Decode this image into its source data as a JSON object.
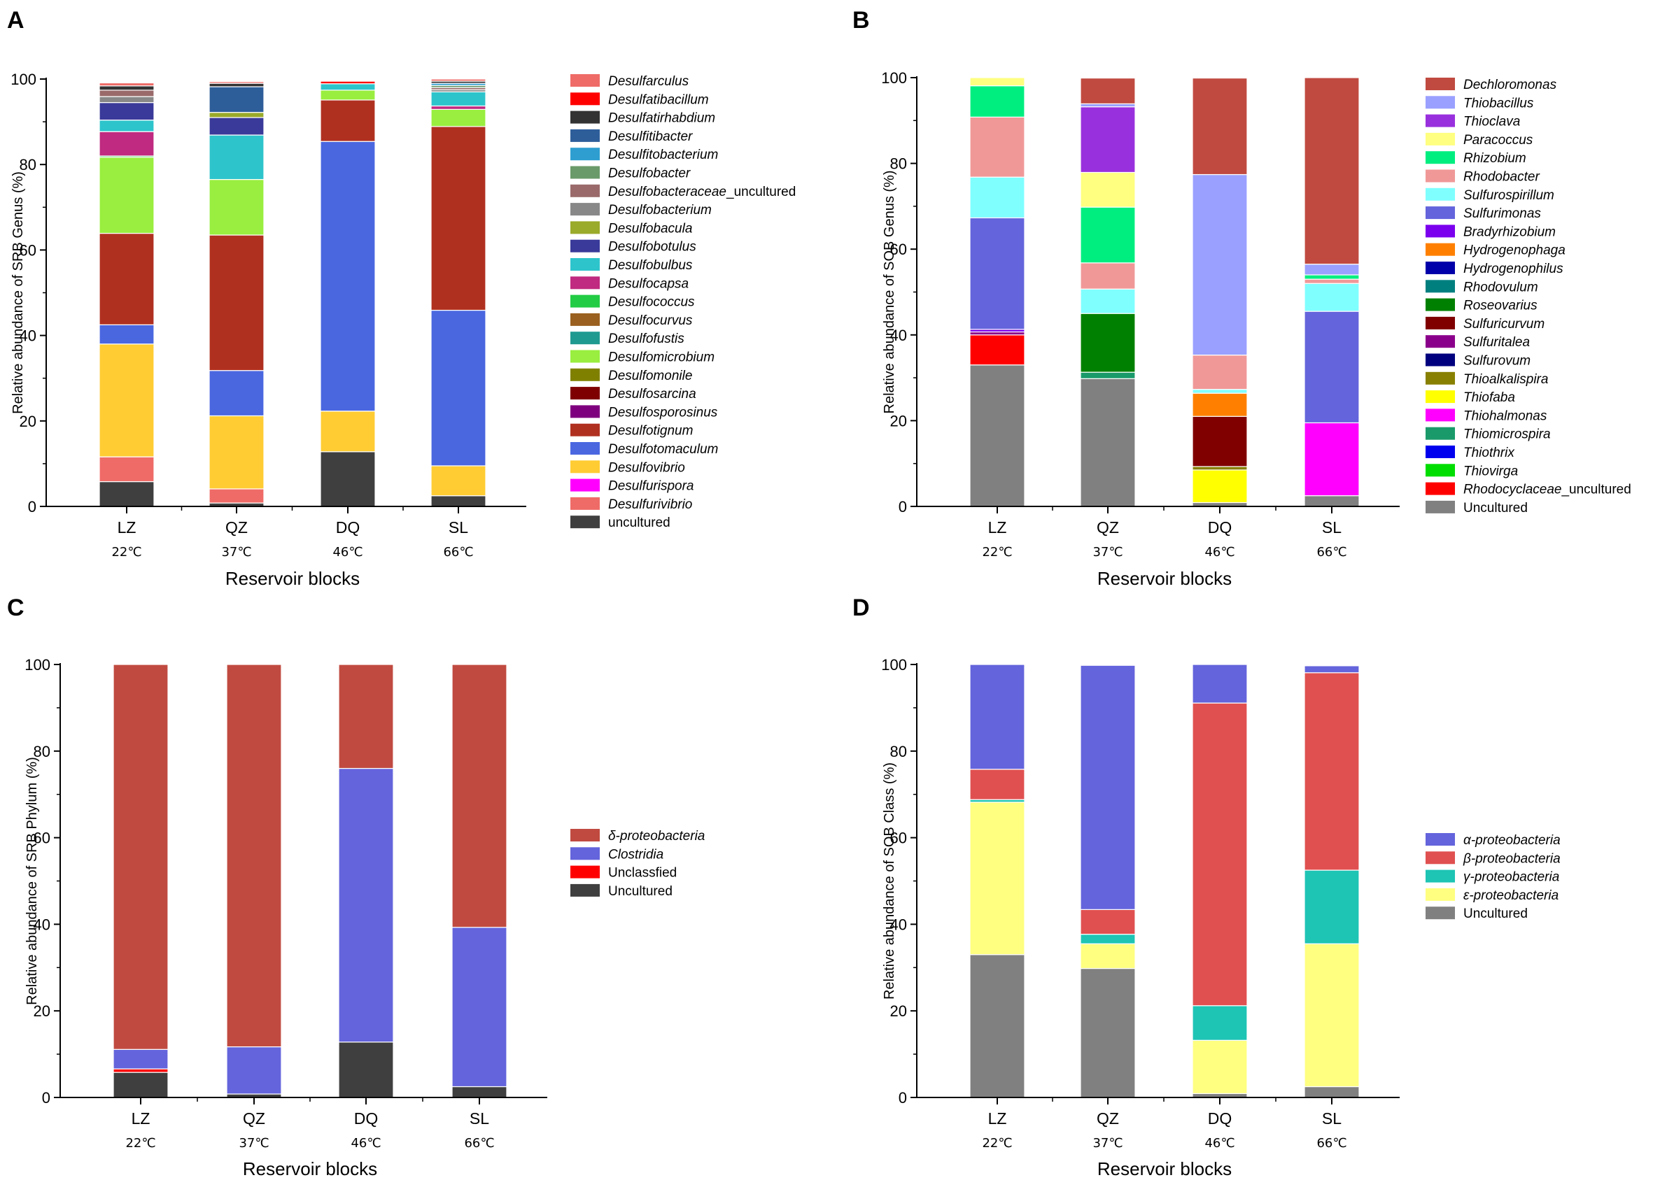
{
  "chart_data": [
    {
      "panel": "A",
      "type": "bar",
      "stacked": true,
      "ylabel": "Relative abundance of SRB Genus (%)",
      "xlabel": "Reservoir  blocks",
      "categories": [
        "LZ",
        "QZ",
        "DQ",
        "SL"
      ],
      "temperatures": [
        "22℃",
        "37℃",
        "46℃",
        "66℃"
      ],
      "ylim": [
        0,
        100
      ],
      "yticks": [
        0,
        20,
        40,
        60,
        80,
        100
      ],
      "legend_position": "right",
      "series": [
        {
          "name": "uncultured",
          "color": "#3f3f3f",
          "values": [
            5.8,
            0.8,
            12.8,
            2.5
          ]
        },
        {
          "name": "Desulfurivibrio",
          "color": "#ef6b67",
          "values": [
            5.8,
            3.3,
            0,
            0
          ]
        },
        {
          "name": "Desulfurispora",
          "color": "#ff00ff",
          "values": [
            0,
            0,
            0,
            0
          ]
        },
        {
          "name": "Desulfovibrio",
          "color": "#ffcc33",
          "values": [
            26.4,
            17.1,
            9.5,
            7
          ]
        },
        {
          "name": "Desulfotomaculum",
          "color": "#4a67e0",
          "values": [
            4.5,
            10.6,
            63.1,
            36.4
          ]
        },
        {
          "name": "Desulfotignum",
          "color": "#b03020",
          "values": [
            21.4,
            31.7,
            9.7,
            43
          ]
        },
        {
          "name": "Desulfosporosinus",
          "color": "#7f007f",
          "values": [
            0,
            0,
            0,
            0
          ]
        },
        {
          "name": "Desulfosarcina",
          "color": "#7f0000",
          "values": [
            0,
            0,
            0,
            0
          ]
        },
        {
          "name": "Desulfomonile",
          "color": "#808000",
          "values": [
            0,
            0,
            0,
            0
          ]
        },
        {
          "name": "Desulfomicrobium",
          "color": "#99ee3f",
          "values": [
            17.8,
            13,
            2.3,
            4
          ]
        },
        {
          "name": "Desulfofustis",
          "color": "#1f9a90",
          "values": [
            0,
            0,
            0,
            0
          ]
        },
        {
          "name": "Desulfocurvus",
          "color": "#9a6020",
          "values": [
            0,
            0,
            0,
            0
          ]
        },
        {
          "name": "Desulfococcus",
          "color": "#22cc44",
          "values": [
            0.3,
            0,
            0,
            0
          ]
        },
        {
          "name": "Desulfocapsa",
          "color": "#c02a80",
          "values": [
            5.7,
            0,
            0,
            0.8
          ]
        },
        {
          "name": "Desulfobulbus",
          "color": "#2ec4cc",
          "values": [
            2.7,
            10.4,
            1.5,
            3.3
          ]
        },
        {
          "name": "Desulfobotulus",
          "color": "#3a3a9a",
          "values": [
            4.1,
            4.1,
            0,
            0
          ]
        },
        {
          "name": "Desulfobacula",
          "color": "#9aaa2a",
          "values": [
            0,
            1.2,
            0,
            0
          ]
        },
        {
          "name": "Desulfobacterium",
          "color": "#888888",
          "values": [
            1.4,
            0,
            0,
            0.5
          ]
        },
        {
          "name": "Desulfobacteraceae_uncultured",
          "color": "#9a6a6a",
          "values": [
            1.5,
            0,
            0,
            0.5
          ]
        },
        {
          "name": "Desulfobacter",
          "color": "#6a9a6a",
          "values": [
            0,
            0,
            0,
            0.5
          ]
        },
        {
          "name": "Desulfitobacterium",
          "color": "#2e9ed0",
          "values": [
            0,
            0,
            0,
            0.5
          ]
        },
        {
          "name": "Desulfitibacter",
          "color": "#2e5e9a",
          "values": [
            0,
            6,
            0,
            0
          ]
        },
        {
          "name": "Desulfatirhabdium",
          "color": "#333333",
          "values": [
            1.0,
            0.8,
            0,
            0.5
          ]
        },
        {
          "name": "Desulfatibacillum",
          "color": "#ff0000",
          "values": [
            0,
            0,
            0.6,
            0
          ]
        },
        {
          "name": "Desulfarculus",
          "color": "#ef6b67",
          "values": [
            0.7,
            0.4,
            0.2,
            0.5
          ]
        }
      ]
    },
    {
      "panel": "B",
      "type": "bar",
      "stacked": true,
      "ylabel": "Relative abundance of SOB Genus (%)",
      "xlabel": "Reservoir  blocks",
      "categories": [
        "LZ",
        "QZ",
        "DQ",
        "SL"
      ],
      "temperatures": [
        "22℃",
        "37℃",
        "46℃",
        "66℃"
      ],
      "ylim": [
        0,
        100
      ],
      "yticks": [
        0,
        20,
        40,
        60,
        80,
        100
      ],
      "legend_position": "right",
      "series": [
        {
          "name": "Uncultured",
          "color": "#808080",
          "values": [
            33,
            29.8,
            0.9,
            2.5
          ]
        },
        {
          "name": "Rhodocyclaceae_uncultured",
          "color": "#ff0000",
          "values": [
            7,
            0,
            0,
            0
          ]
        },
        {
          "name": "Thiovirga",
          "color": "#00dd00",
          "values": [
            0,
            0,
            0,
            0
          ]
        },
        {
          "name": "Thiothrix",
          "color": "#0000ee",
          "values": [
            0,
            0,
            0,
            0
          ]
        },
        {
          "name": "Thiomicrospira",
          "color": "#1a9a6a",
          "values": [
            0,
            1.5,
            0,
            0
          ]
        },
        {
          "name": "Thiohalmonas",
          "color": "#ff00ff",
          "values": [
            0,
            0,
            0,
            17
          ]
        },
        {
          "name": "Thiofaba",
          "color": "#ffff00",
          "values": [
            0,
            0,
            7.6,
            0
          ]
        },
        {
          "name": "Thioalkalispira",
          "color": "#888000",
          "values": [
            0,
            0,
            0.8,
            0
          ]
        },
        {
          "name": "Sulfurovum",
          "color": "#00007f",
          "values": [
            0,
            0,
            0,
            0
          ]
        },
        {
          "name": "Sulfuritalea",
          "color": "#8b008b",
          "values": [
            0.7,
            0,
            0,
            0
          ]
        },
        {
          "name": "Sulfuricurvum",
          "color": "#800000",
          "values": [
            0,
            0,
            11.7,
            0
          ]
        },
        {
          "name": "Roseovarius",
          "color": "#008000",
          "values": [
            0,
            13.7,
            0,
            0
          ]
        },
        {
          "name": "Rhodovulum",
          "color": "#007f7f",
          "values": [
            0,
            0,
            0,
            0
          ]
        },
        {
          "name": "Hydrogenophilus",
          "color": "#0000aa",
          "values": [
            0,
            0,
            0,
            0
          ]
        },
        {
          "name": "Hydrogenophaga",
          "color": "#ff8000",
          "values": [
            0,
            0,
            5.4,
            0
          ]
        },
        {
          "name": "Bradyrhizobium",
          "color": "#7b00ee",
          "values": [
            0.6,
            0,
            0,
            0
          ]
        },
        {
          "name": "Sulfurimonas",
          "color": "#6464dc",
          "values": [
            26,
            0,
            0,
            26
          ]
        },
        {
          "name": "Sulfurospirillum",
          "color": "#80ffff",
          "values": [
            9.5,
            5.7,
            0.9,
            6.5
          ]
        },
        {
          "name": "Rhodobacter",
          "color": "#f09898",
          "values": [
            14,
            6.1,
            8,
            1
          ]
        },
        {
          "name": "Rhizobium",
          "color": "#00ee80",
          "values": [
            7.3,
            13,
            0,
            1
          ]
        },
        {
          "name": "Paracoccus",
          "color": "#ffff80",
          "values": [
            1.9,
            8.1,
            0,
            0
          ]
        },
        {
          "name": "Thioclava",
          "color": "#9930dd",
          "values": [
            0,
            15.3,
            0,
            0
          ]
        },
        {
          "name": "Thiobacillus",
          "color": "#9aa0ff",
          "values": [
            0,
            0.7,
            42.1,
            2.5
          ]
        },
        {
          "name": "Dechloromonas",
          "color": "#c04a40",
          "values": [
            0,
            6,
            22.5,
            43.5
          ]
        }
      ]
    },
    {
      "panel": "C",
      "type": "bar",
      "stacked": true,
      "ylabel": "Relative abundance of SRB Phylum (%)",
      "xlabel": "Reservoir  blocks",
      "categories": [
        "LZ",
        "QZ",
        "DQ",
        "SL"
      ],
      "temperatures": [
        "22℃",
        "37℃",
        "46℃",
        "66℃"
      ],
      "ylim": [
        0,
        100
      ],
      "yticks": [
        0,
        20,
        40,
        60,
        80,
        100
      ],
      "legend_position": "right",
      "series": [
        {
          "name": "Uncultured",
          "color": "#3f3f3f",
          "values": [
            5.8,
            0.8,
            12.8,
            2.5
          ]
        },
        {
          "name": "Unclassfied",
          "color": "#ff0000",
          "values": [
            0.8,
            0,
            0,
            0
          ]
        },
        {
          "name": "Clostridia",
          "color": "#6464dc",
          "values": [
            4.5,
            10.9,
            63.2,
            36.8
          ]
        },
        {
          "name": "δ-proteobacteria",
          "color": "#c04a40",
          "values": [
            88.9,
            88.3,
            24,
            60.7
          ]
        }
      ]
    },
    {
      "panel": "D",
      "type": "bar",
      "stacked": true,
      "ylabel": "Relative abundance of SOB Class (%)",
      "xlabel": "Reservoir  blocks",
      "categories": [
        "LZ",
        "QZ",
        "DQ",
        "SL"
      ],
      "temperatures": [
        "22℃",
        "37℃",
        "46℃",
        "66℃"
      ],
      "ylim": [
        0,
        100
      ],
      "yticks": [
        0,
        20,
        40,
        60,
        80,
        100
      ],
      "legend_position": "right",
      "series": [
        {
          "name": "Uncultured",
          "color": "#808080",
          "values": [
            33,
            29.8,
            0.9,
            2.5
          ]
        },
        {
          "name": "ε-proteobacteria",
          "color": "#ffff80",
          "values": [
            35.2,
            5.7,
            12.3,
            33
          ]
        },
        {
          "name": "γ-proteobacteria",
          "color": "#1ec4b4",
          "values": [
            0.6,
            2.2,
            8,
            17
          ]
        },
        {
          "name": "β-proteobacteria",
          "color": "#e05050",
          "values": [
            7,
            5.7,
            69.9,
            45.6
          ]
        },
        {
          "name": "α-proteobacteria",
          "color": "#6464dc",
          "values": [
            24.2,
            56.4,
            8.9,
            1.6
          ]
        }
      ]
    }
  ]
}
